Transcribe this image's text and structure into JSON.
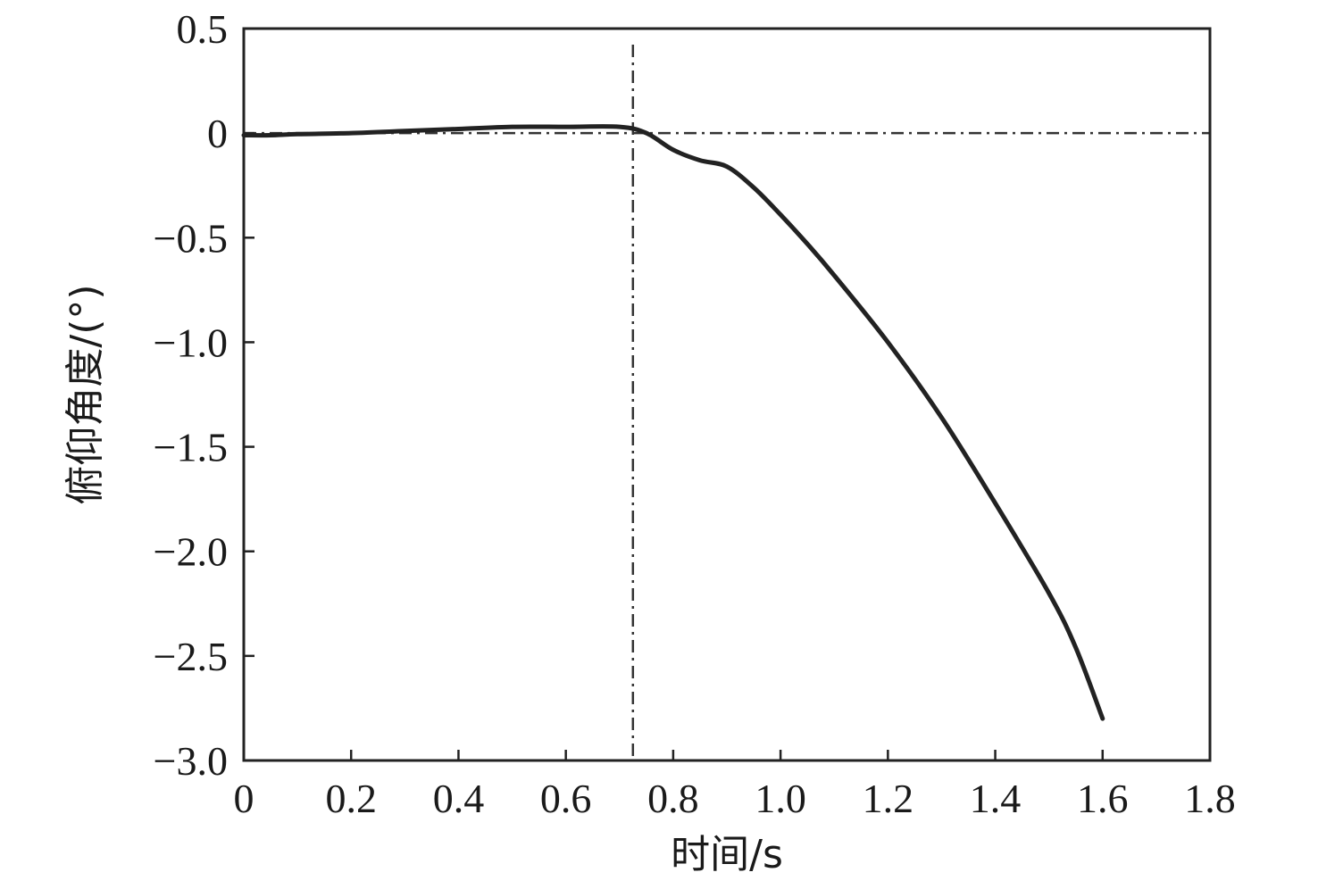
{
  "chart_data": {
    "type": "line",
    "title": "",
    "xlabel": "时间/s",
    "ylabel": "俯仰角度/(°)",
    "xlim": [
      0,
      1.8
    ],
    "ylim": [
      -3.0,
      0.5
    ],
    "x_ticks": [
      "0",
      "0.2",
      "0.4",
      "0.6",
      "0.8",
      "1.0",
      "1.2",
      "1.4",
      "1.6",
      "1.8"
    ],
    "x_tick_values": [
      0,
      0.2,
      0.4,
      0.6,
      0.8,
      1.0,
      1.2,
      1.4,
      1.6,
      1.8
    ],
    "y_ticks": [
      "0.5",
      "0",
      "−0.5",
      "−1.0",
      "−1.5",
      "−2.0",
      "−2.5",
      "−3.0"
    ],
    "y_tick_values": [
      0.5,
      0,
      -0.5,
      -1.0,
      -1.5,
      -2.0,
      -2.5,
      -3.0
    ],
    "grid": false,
    "legend": "none",
    "reference_lines": [
      {
        "orientation": "horizontal",
        "value": 0,
        "style": "dash-dot"
      },
      {
        "orientation": "vertical",
        "value": 0.725,
        "style": "dash-dot"
      }
    ],
    "series": [
      {
        "color": "#222222",
        "x": [
          0,
          0.05,
          0.1,
          0.2,
          0.3,
          0.4,
          0.5,
          0.6,
          0.7,
          0.75,
          0.8,
          0.85,
          0.9,
          0.95,
          1.0,
          1.05,
          1.1,
          1.2,
          1.3,
          1.4,
          1.5,
          1.55,
          1.6
        ],
        "y": [
          -0.01,
          -0.01,
          -0.005,
          0.0,
          0.01,
          0.02,
          0.03,
          0.03,
          0.03,
          0.0,
          -0.08,
          -0.13,
          -0.16,
          -0.26,
          -0.39,
          -0.53,
          -0.68,
          -1.0,
          -1.36,
          -1.77,
          -2.2,
          -2.46,
          -2.8
        ]
      }
    ]
  }
}
